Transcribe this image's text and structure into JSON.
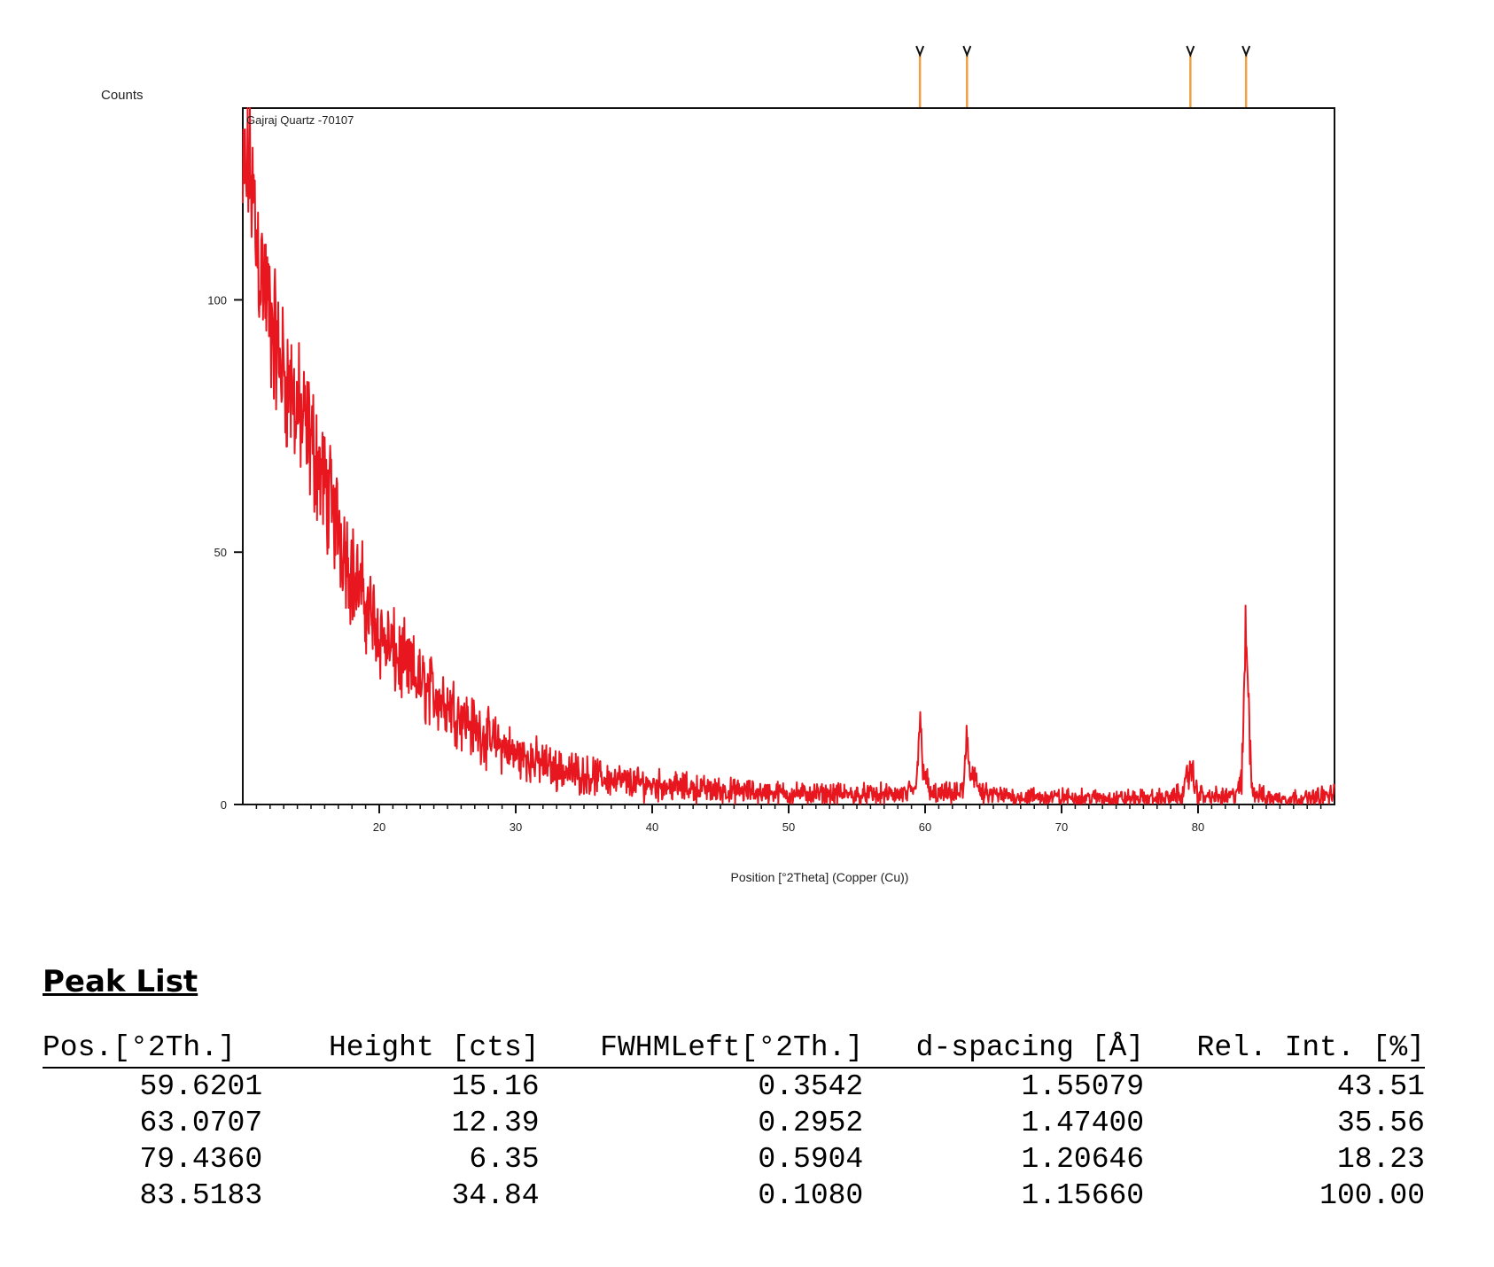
{
  "chart_data": {
    "type": "line",
    "title": "",
    "sample_label": "Gajraj Quartz -70107",
    "ylabel": "Counts",
    "xlabel": "Position [°2Theta] (Copper (Cu))",
    "xlim": [
      10,
      90
    ],
    "ylim": [
      0,
      138
    ],
    "xticks": [
      20,
      30,
      40,
      50,
      60,
      70,
      80
    ],
    "yticks": [
      0,
      50,
      100
    ],
    "grid": false,
    "colors": {
      "pattern": "#e8161e",
      "markers": "#f0a040",
      "axis": "#111111"
    },
    "series": [
      {
        "values": [
          [
            10,
            120
          ],
          [
            10.5,
            128
          ],
          [
            11,
            112
          ],
          [
            11.5,
            104
          ],
          [
            12,
            96
          ],
          [
            12.5,
            90
          ],
          [
            13,
            86
          ],
          [
            13.5,
            82
          ],
          [
            14,
            78
          ],
          [
            14.5,
            74
          ],
          [
            15,
            72
          ],
          [
            15.5,
            68
          ],
          [
            16,
            63
          ],
          [
            16.5,
            59
          ],
          [
            17,
            55
          ],
          [
            17.5,
            51
          ],
          [
            18,
            46
          ],
          [
            18.5,
            43
          ],
          [
            19,
            40
          ],
          [
            19.5,
            37
          ],
          [
            20,
            34
          ],
          [
            21,
            30
          ],
          [
            22,
            27
          ],
          [
            23,
            24
          ],
          [
            24,
            22
          ],
          [
            25,
            20
          ],
          [
            26,
            18
          ],
          [
            27,
            15
          ],
          [
            28,
            13
          ],
          [
            29,
            11.5
          ],
          [
            30,
            10
          ],
          [
            31,
            9
          ],
          [
            32,
            8
          ],
          [
            33,
            7
          ],
          [
            34,
            6.5
          ],
          [
            35,
            6
          ],
          [
            36,
            5.5
          ],
          [
            37,
            5
          ],
          [
            38,
            4.5
          ],
          [
            39,
            4.2
          ],
          [
            40,
            4
          ],
          [
            42,
            3.5
          ],
          [
            44,
            3
          ],
          [
            46,
            2.6
          ],
          [
            48,
            2.4
          ],
          [
            50,
            2.2
          ],
          [
            52,
            2
          ],
          [
            54,
            2
          ],
          [
            56,
            1.9
          ],
          [
            58,
            1.9
          ],
          [
            59.3,
            2.5
          ],
          [
            59.6,
            15.5
          ],
          [
            59.9,
            8
          ],
          [
            60.3,
            2
          ],
          [
            62.5,
            2
          ],
          [
            62.8,
            3
          ],
          [
            63.07,
            13
          ],
          [
            63.3,
            6
          ],
          [
            63.6,
            7
          ],
          [
            64,
            2
          ],
          [
            66,
            1.6
          ],
          [
            70,
            1.4
          ],
          [
            74,
            1.2
          ],
          [
            78,
            1.3
          ],
          [
            79,
            2.5
          ],
          [
            79.43,
            8
          ],
          [
            79.8,
            3
          ],
          [
            80.5,
            1.5
          ],
          [
            82.5,
            1.5
          ],
          [
            83.2,
            4
          ],
          [
            83.52,
            36
          ],
          [
            83.7,
            20
          ],
          [
            84,
            2.5
          ],
          [
            85,
            1.3
          ],
          [
            88,
            1.2
          ],
          [
            90,
            2
          ]
        ]
      }
    ],
    "reference_peaks": [
      59.62,
      63.07,
      79.44,
      83.52
    ]
  },
  "peak_list": {
    "heading": "Peak List",
    "columns": [
      "Pos.[°2Th.]",
      "Height [cts]",
      "FWHMLeft[°2Th.]",
      "d-spacing [Å]",
      "Rel. Int. [%]"
    ],
    "rows": [
      [
        "59.6201",
        "15.16",
        "0.3542",
        "1.55079",
        "43.51"
      ],
      [
        "63.0707",
        "12.39",
        "0.2952",
        "1.47400",
        "35.56"
      ],
      [
        "79.4360",
        "6.35",
        "0.5904",
        "1.20646",
        "18.23"
      ],
      [
        "83.5183",
        "34.84",
        "0.1080",
        "1.15660",
        "100.00"
      ]
    ]
  }
}
